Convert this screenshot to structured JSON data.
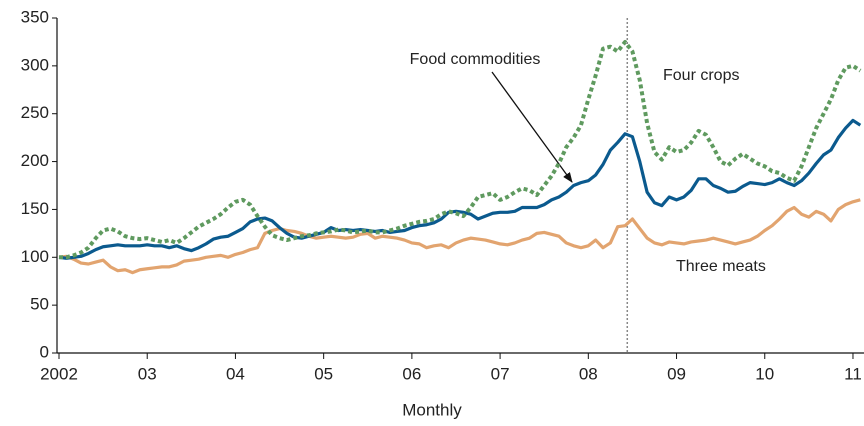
{
  "chart_data": {
    "type": "line",
    "xlabel": "Monthly",
    "xlim": [
      0,
      109.5
    ],
    "xticks": [
      {
        "value": 0,
        "label": "2002"
      },
      {
        "value": 12,
        "label": "03"
      },
      {
        "value": 24,
        "label": "04"
      },
      {
        "value": 36,
        "label": "05"
      },
      {
        "value": 48,
        "label": "06"
      },
      {
        "value": 60,
        "label": "07"
      },
      {
        "value": 72,
        "label": "08"
      },
      {
        "value": 84,
        "label": "09"
      },
      {
        "value": 96,
        "label": "10"
      },
      {
        "value": 108,
        "label": "11"
      }
    ],
    "ylim": [
      0,
      350
    ],
    "yticks": [
      0,
      50,
      100,
      150,
      200,
      250,
      300,
      350
    ],
    "reference_line": {
      "x": 77.3,
      "style": "dotted",
      "color": "#888888"
    },
    "series": [
      {
        "name": "Food commodities",
        "color": "#0b5a8e",
        "style": "solid",
        "values": [
          100,
          99,
          100,
          101,
          104,
          108,
          111,
          112,
          113,
          112,
          112,
          112,
          113,
          112,
          112,
          110,
          112,
          109,
          107,
          110,
          114,
          119,
          121,
          122,
          126,
          130,
          137,
          140,
          141,
          138,
          131,
          125,
          121,
          120,
          122,
          124,
          126,
          131,
          128,
          129,
          128,
          129,
          128,
          127,
          128,
          126,
          127,
          128,
          131,
          133,
          134,
          136,
          140,
          147,
          148,
          147,
          145,
          140,
          143,
          146,
          147,
          147,
          148,
          152,
          152,
          152,
          155,
          160,
          163,
          168,
          175,
          178,
          180,
          186,
          197,
          212,
          220,
          229,
          226,
          200,
          168,
          157,
          154,
          163,
          160,
          163,
          170,
          182,
          182,
          175,
          172,
          168,
          169,
          174,
          178,
          177,
          176,
          178,
          182,
          178,
          175,
          180,
          188,
          198,
          207,
          212,
          225,
          235,
          243,
          238
        ]
      },
      {
        "name": "Four crops",
        "color": "#5f9a5f",
        "style": "dotted",
        "values": [
          100,
          100,
          102,
          105,
          110,
          120,
          128,
          130,
          127,
          122,
          120,
          119,
          120,
          118,
          116,
          118,
          115,
          120,
          126,
          132,
          136,
          140,
          145,
          152,
          158,
          160,
          155,
          143,
          132,
          123,
          120,
          118,
          120,
          122,
          123,
          125,
          126,
          127,
          129,
          128,
          126,
          127,
          128,
          126,
          126,
          128,
          130,
          133,
          135,
          137,
          138,
          140,
          145,
          148,
          146,
          143,
          152,
          163,
          165,
          167,
          160,
          163,
          168,
          172,
          170,
          165,
          175,
          185,
          198,
          215,
          225,
          238,
          265,
          290,
          318,
          320,
          315,
          325,
          315,
          285,
          240,
          210,
          202,
          215,
          210,
          212,
          220,
          232,
          228,
          215,
          200,
          196,
          203,
          208,
          203,
          198,
          195,
          190,
          188,
          183,
          180,
          195,
          215,
          235,
          250,
          265,
          285,
          298,
          300,
          295
        ]
      },
      {
        "name": "Three meats",
        "color": "#e2a46f",
        "style": "solid",
        "values": [
          100,
          101,
          98,
          94,
          93,
          95,
          97,
          90,
          86,
          87,
          84,
          87,
          88,
          89,
          90,
          90,
          92,
          96,
          97,
          98,
          100,
          101,
          102,
          100,
          103,
          105,
          108,
          110,
          125,
          128,
          130,
          128,
          127,
          125,
          122,
          120,
          121,
          122,
          121,
          120,
          121,
          124,
          125,
          120,
          122,
          121,
          120,
          118,
          115,
          114,
          110,
          112,
          113,
          110,
          115,
          118,
          120,
          119,
          118,
          116,
          114,
          113,
          115,
          118,
          120,
          125,
          126,
          124,
          122,
          115,
          112,
          110,
          112,
          118,
          110,
          115,
          132,
          133,
          140,
          130,
          120,
          115,
          113,
          116,
          115,
          114,
          116,
          117,
          118,
          120,
          118,
          116,
          114,
          116,
          118,
          122,
          128,
          133,
          140,
          148,
          152,
          145,
          142,
          148,
          145,
          138,
          150,
          155,
          158,
          160
        ]
      }
    ]
  }
}
